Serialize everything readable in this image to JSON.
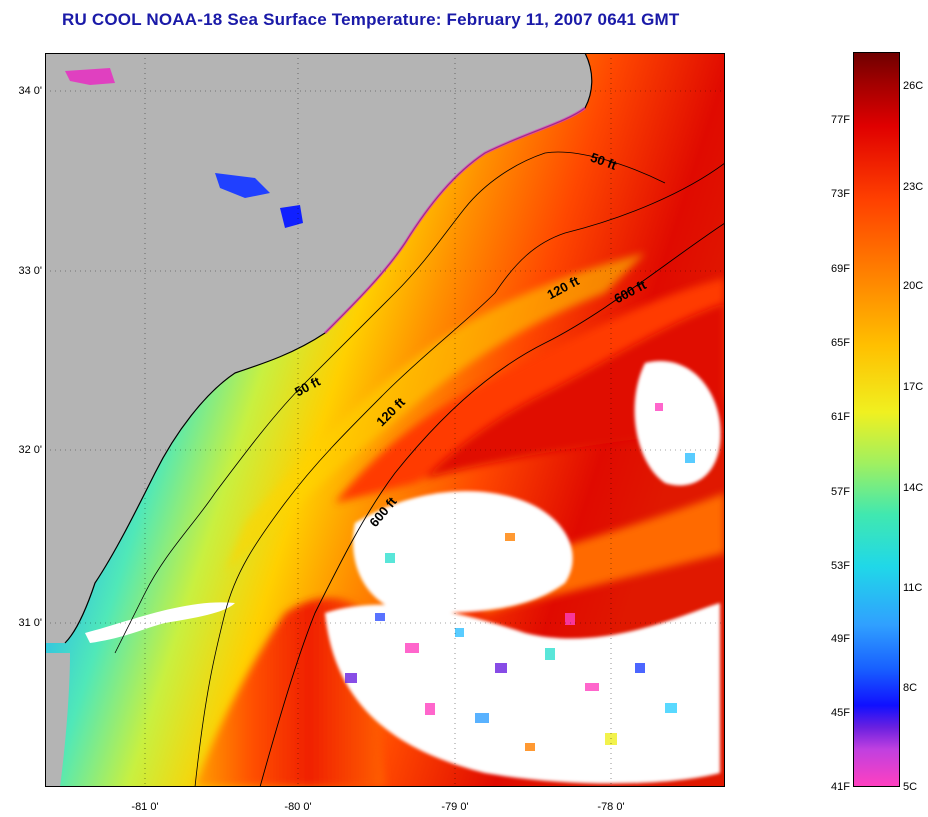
{
  "title": "RU COOL  NOAA-18  Sea Surface Temperature:  February 11, 2007 0641 GMT",
  "map": {
    "latitude_labels": [
      {
        "label": "34 0'",
        "lat": 34
      },
      {
        "label": "33 0'",
        "lat": 33
      },
      {
        "label": "32 0'",
        "lat": 32
      },
      {
        "label": "31 0'",
        "lat": 31
      }
    ],
    "longitude_labels": [
      {
        "label": "-81 0'",
        "lon": -81
      },
      {
        "label": "-80 0'",
        "lon": -80
      },
      {
        "label": "-79 0'",
        "lon": -79
      },
      {
        "label": "-78 0'",
        "lon": -78
      }
    ],
    "depth_contours": [
      "50 ft",
      "120 ft",
      "600 ft"
    ],
    "contour_labels": {
      "c50a": "50 ft",
      "c50b": "50 ft",
      "c120a": "120 ft",
      "c120b": "120 ft",
      "c600a": "600 ft",
      "c600b": "600 ft"
    },
    "colors": {
      "land": "#b4b4b4",
      "cloud": "#ffffff",
      "coast": "#000000"
    }
  },
  "colorbar": {
    "fahrenheit_labels": [
      "77F",
      "73F",
      "69F",
      "65F",
      "61F",
      "57F",
      "53F",
      "49F",
      "45F",
      "41F"
    ],
    "celsius_labels": [
      "26C",
      "23C",
      "20C",
      "17C",
      "14C",
      "11C",
      "8C",
      "5C"
    ],
    "range_celsius": [
      5,
      27
    ],
    "palette": [
      "#ff40c0",
      "#6a20e0",
      "#1010ff",
      "#30a0ff",
      "#20d8e8",
      "#a0f060",
      "#f0f020",
      "#ff8000",
      "#e00000",
      "#700000"
    ]
  }
}
